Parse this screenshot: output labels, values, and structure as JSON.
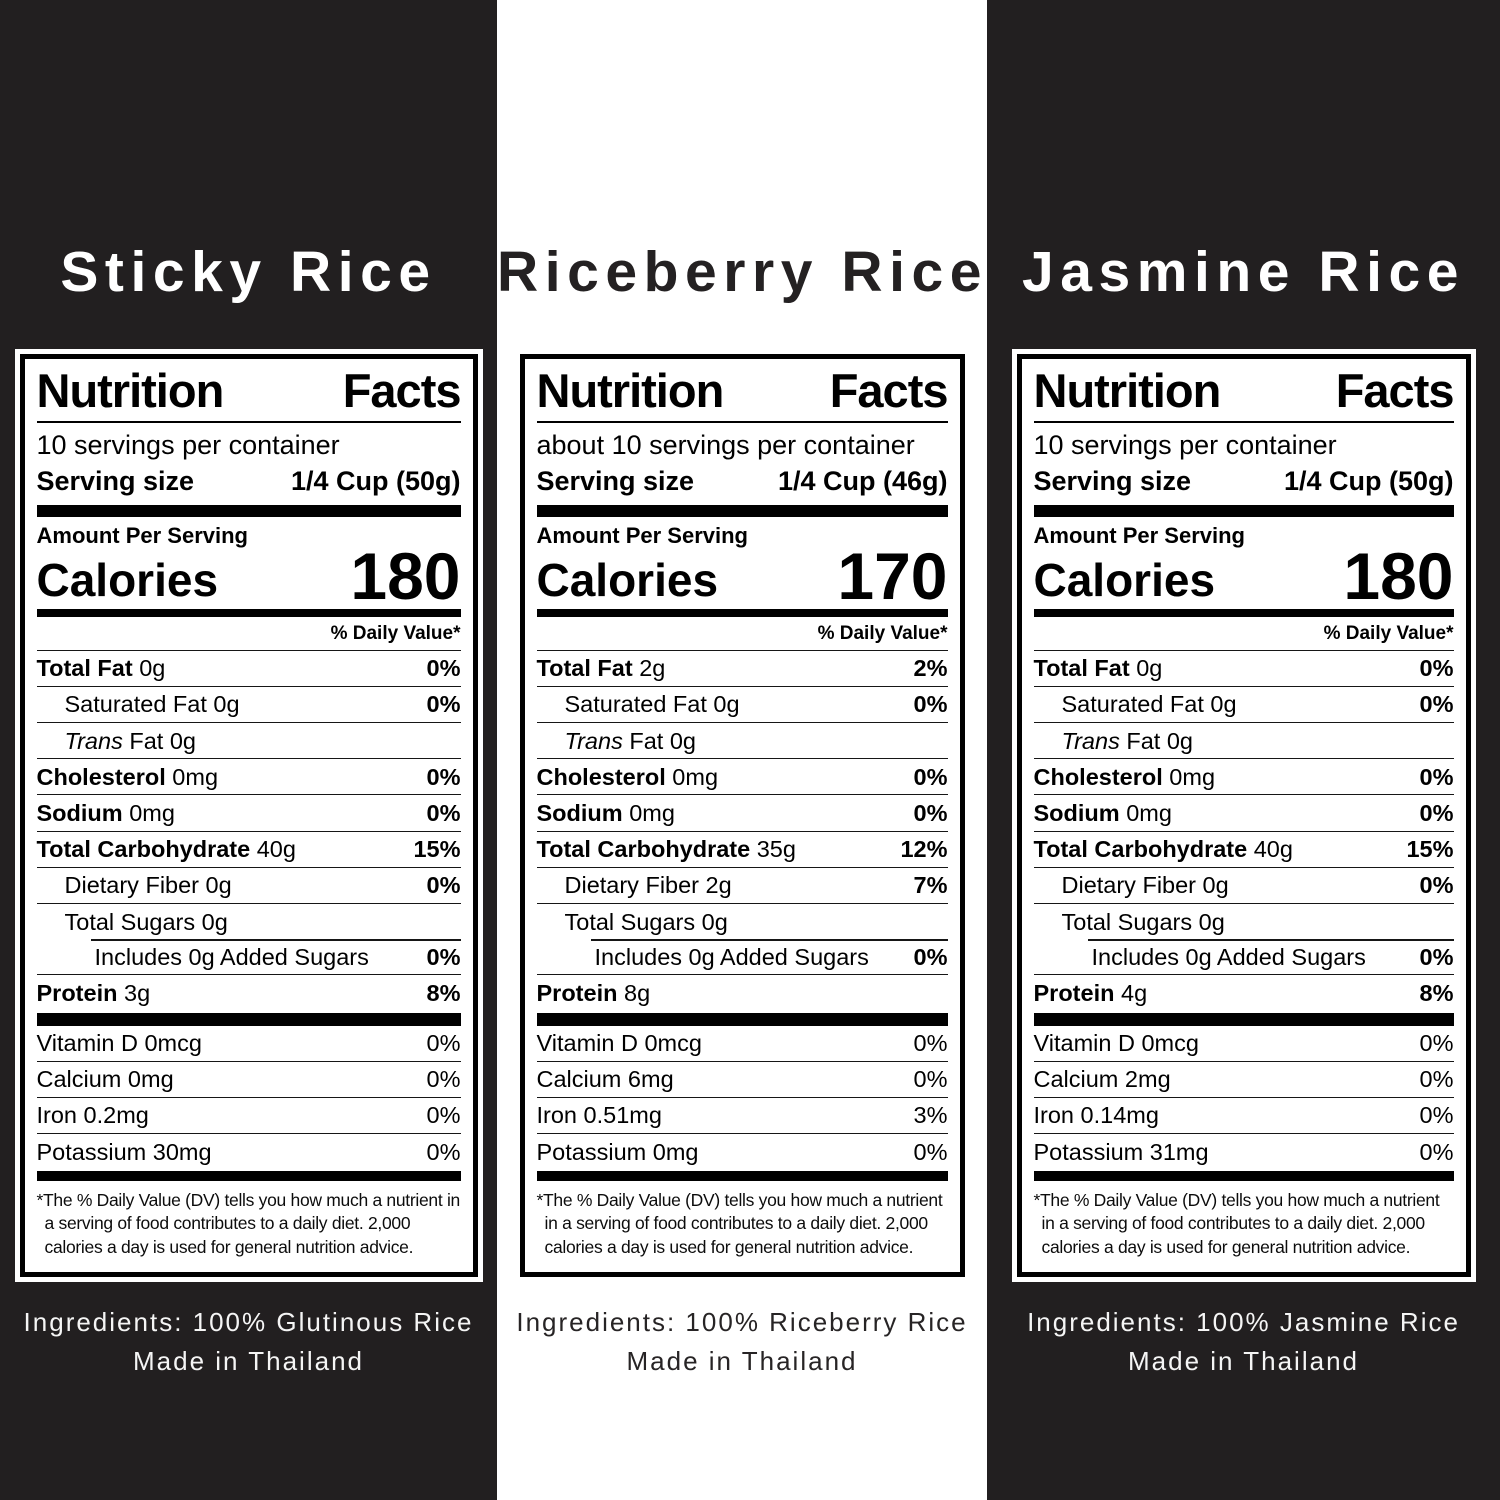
{
  "page": {
    "background_dark": "#221f20",
    "background_light": "#ffffff",
    "label_text_color": "#000000"
  },
  "shared": {
    "nutrition_facts_title": "Nutrition Facts",
    "serving_size_label": "Serving size",
    "amount_per_serving": "Amount Per Serving",
    "calories_label": "Calories",
    "daily_value_header": "% Daily Value*",
    "footnote": "*The % Daily Value (DV) tells you how much a nutrient in a serving of food contributes to a daily diet. 2,000 calories a day is used for general nutrition advice."
  },
  "products": [
    {
      "title": "Sticky Rice",
      "servings_per_container": "10 servings per container",
      "serving_size": "1/4 Cup (50g)",
      "calories": "180",
      "rows": [
        {
          "name": "Total Fat",
          "amount": "0g",
          "dv": "0%",
          "bold": true
        },
        {
          "name": "Saturated Fat",
          "amount": "0g",
          "dv": "0%",
          "indent": 1
        },
        {
          "name": "Trans",
          "amount": "Fat 0g",
          "dv": "",
          "indent": 1,
          "italic": true
        },
        {
          "name": "Cholesterol",
          "amount": "0mg",
          "dv": "0%",
          "bold": true
        },
        {
          "name": "Sodium",
          "amount": "0mg",
          "dv": "0%",
          "bold": true
        },
        {
          "name": "Total Carbohydrate",
          "amount": "40g",
          "dv": "15%",
          "bold": true
        },
        {
          "name": "Dietary Fiber",
          "amount": "0g",
          "dv": "0%",
          "indent": 1
        },
        {
          "name": "Total Sugars",
          "amount": "0g",
          "dv": "",
          "indent": 1
        },
        {
          "name": "Includes 0g Added Sugars",
          "amount": "",
          "dv": "0%",
          "indent": 2,
          "inset_rule": true
        },
        {
          "name": "Protein",
          "amount": "3g",
          "dv": "8%",
          "bold": true
        }
      ],
      "vitamins": [
        {
          "name": "Vitamin D",
          "amount": "0mcg",
          "dv": "0%"
        },
        {
          "name": "Calcium",
          "amount": "0mg",
          "dv": "0%"
        },
        {
          "name": "Iron",
          "amount": "0.2mg",
          "dv": "0%"
        },
        {
          "name": "Potassium",
          "amount": "30mg",
          "dv": "0%"
        }
      ],
      "ingredients_line1": "Ingredients: 100% Glutinous Rice",
      "ingredients_line2": "Made in Thailand"
    },
    {
      "title": "Riceberry Rice",
      "servings_per_container": "about 10 servings per container",
      "serving_size": "1/4 Cup (46g)",
      "calories": "170",
      "rows": [
        {
          "name": "Total Fat",
          "amount": "2g",
          "dv": "2%",
          "bold": true
        },
        {
          "name": "Saturated Fat",
          "amount": "0g",
          "dv": "0%",
          "indent": 1
        },
        {
          "name": "Trans",
          "amount": "Fat 0g",
          "dv": "",
          "indent": 1,
          "italic": true
        },
        {
          "name": "Cholesterol",
          "amount": "0mg",
          "dv": "0%",
          "bold": true
        },
        {
          "name": "Sodium",
          "amount": "0mg",
          "dv": "0%",
          "bold": true
        },
        {
          "name": "Total Carbohydrate",
          "amount": "35g",
          "dv": "12%",
          "bold": true
        },
        {
          "name": "Dietary Fiber",
          "amount": "2g",
          "dv": "7%",
          "indent": 1
        },
        {
          "name": "Total Sugars",
          "amount": "0g",
          "dv": "",
          "indent": 1
        },
        {
          "name": "Includes 0g Added Sugars",
          "amount": "",
          "dv": "0%",
          "indent": 2,
          "inset_rule": true
        },
        {
          "name": "Protein",
          "amount": "8g",
          "dv": "",
          "bold": true
        }
      ],
      "vitamins": [
        {
          "name": "Vitamin D",
          "amount": "0mcg",
          "dv": "0%"
        },
        {
          "name": "Calcium",
          "amount": "6mg",
          "dv": "0%"
        },
        {
          "name": "Iron",
          "amount": "0.51mg",
          "dv": "3%"
        },
        {
          "name": "Potassium",
          "amount": "0mg",
          "dv": "0%"
        }
      ],
      "ingredients_line1": "Ingredients: 100% Riceberry Rice",
      "ingredients_line2": "Made in Thailand"
    },
    {
      "title": "Jasmine Rice",
      "servings_per_container": "10 servings per container",
      "serving_size": "1/4 Cup (50g)",
      "calories": "180",
      "rows": [
        {
          "name": "Total Fat",
          "amount": "0g",
          "dv": "0%",
          "bold": true
        },
        {
          "name": "Saturated Fat",
          "amount": "0g",
          "dv": "0%",
          "indent": 1
        },
        {
          "name": "Trans",
          "amount": "Fat 0g",
          "dv": "",
          "indent": 1,
          "italic": true
        },
        {
          "name": "Cholesterol",
          "amount": "0mg",
          "dv": "0%",
          "bold": true
        },
        {
          "name": "Sodium",
          "amount": "0mg",
          "dv": "0%",
          "bold": true
        },
        {
          "name": "Total Carbohydrate",
          "amount": "40g",
          "dv": "15%",
          "bold": true
        },
        {
          "name": "Dietary Fiber",
          "amount": "0g",
          "dv": "0%",
          "indent": 1
        },
        {
          "name": "Total Sugars",
          "amount": "0g",
          "dv": "",
          "indent": 1
        },
        {
          "name": "Includes 0g Added Sugars",
          "amount": "",
          "dv": "0%",
          "indent": 2,
          "inset_rule": true
        },
        {
          "name": "Protein",
          "amount": "4g",
          "dv": "8%",
          "bold": true
        }
      ],
      "vitamins": [
        {
          "name": "Vitamin D",
          "amount": "0mcg",
          "dv": "0%"
        },
        {
          "name": "Calcium",
          "amount": "2mg",
          "dv": "0%"
        },
        {
          "name": "Iron",
          "amount": "0.14mg",
          "dv": "0%"
        },
        {
          "name": "Potassium",
          "amount": "31mg",
          "dv": "0%"
        }
      ],
      "ingredients_line1": "Ingredients: 100% Jasmine Rice",
      "ingredients_line2": "Made in Thailand"
    }
  ]
}
